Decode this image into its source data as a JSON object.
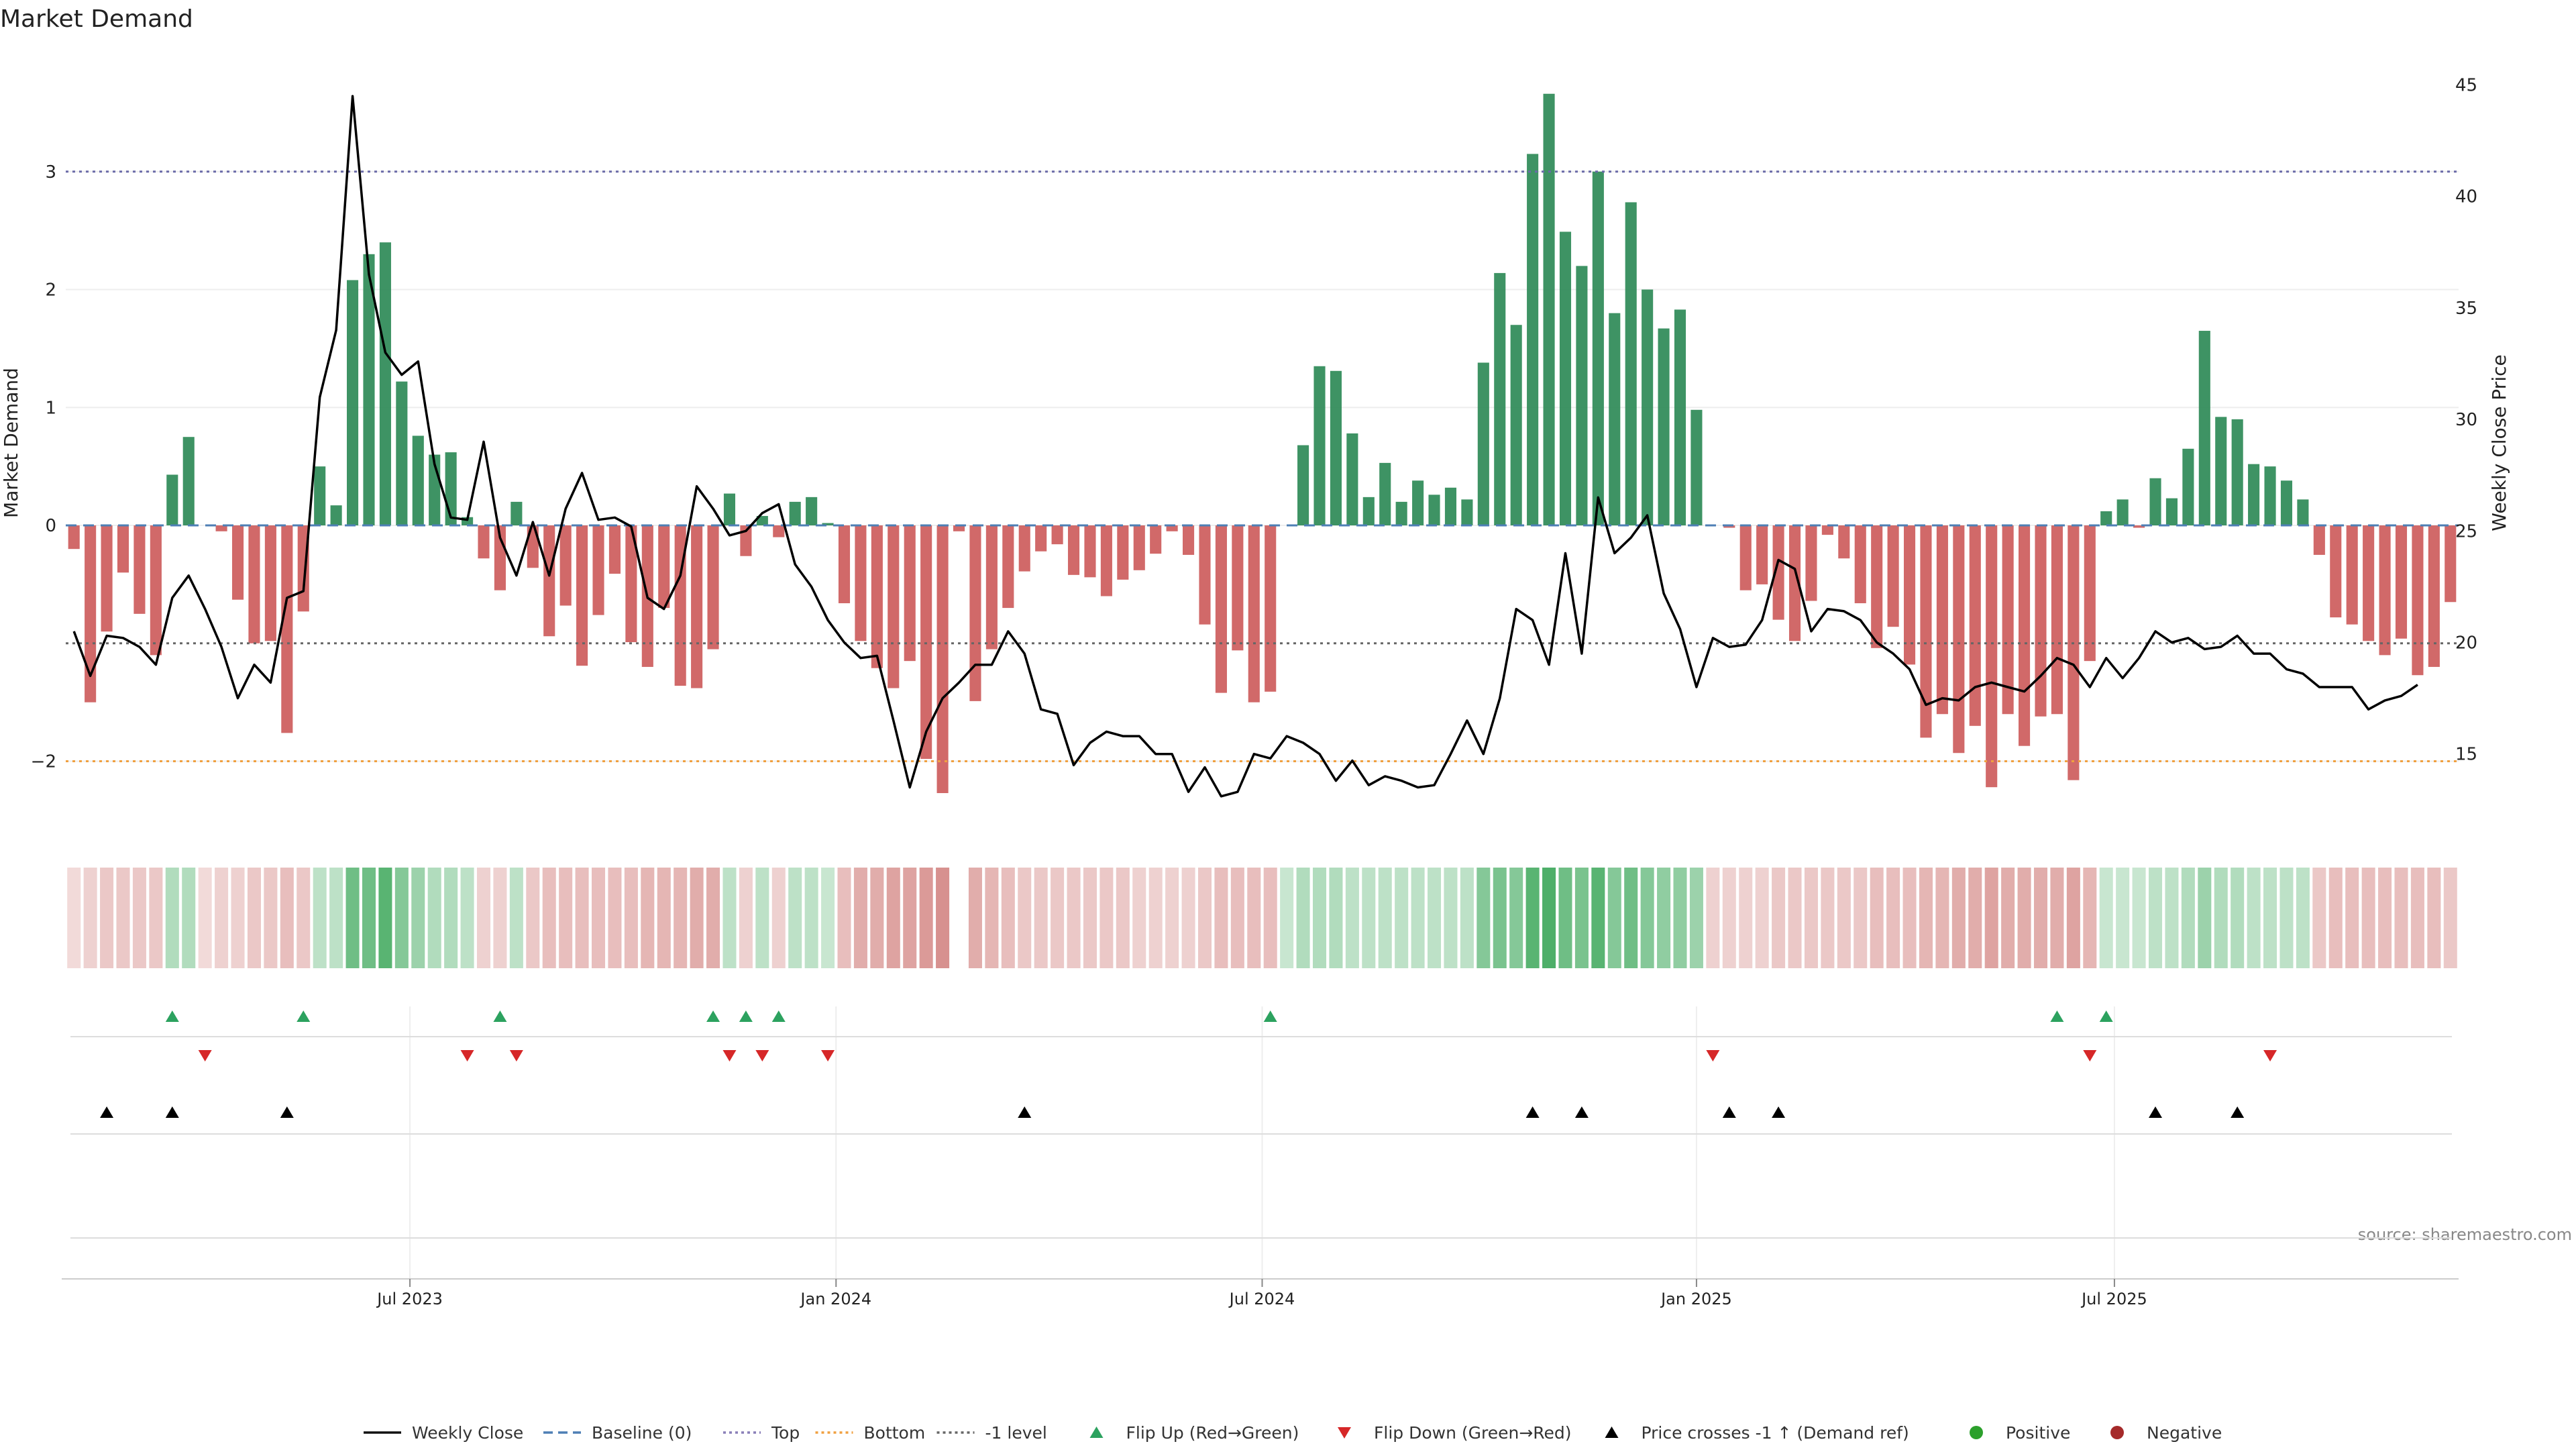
{
  "chart_data": {
    "type": "bar",
    "title": "Market Demand",
    "ylabel": "Market Demand",
    "y2label": "Weekly Close Price",
    "ylim": [
      -2.6,
      4.0
    ],
    "y2lim": [
      11.5,
      46.4
    ],
    "yticks": [
      "3",
      "2",
      "1",
      "0",
      "−2"
    ],
    "yticks_values": [
      3,
      2,
      1,
      0,
      -2
    ],
    "y2ticks": [
      "45",
      "40",
      "35",
      "30",
      "25",
      "20",
      "15"
    ],
    "y2ticks_values": [
      45,
      40,
      35,
      30,
      25,
      20,
      15
    ],
    "xticks": [
      {
        "label": "Jul 2023",
        "index": 21
      },
      {
        "label": "Jan 2024",
        "index": 47
      },
      {
        "label": "Jul 2024",
        "index": 73
      },
      {
        "label": "Jan 2025",
        "index": 99.5
      },
      {
        "label": "Jul 2025",
        "index": 125
      }
    ],
    "levels": {
      "top": 3.0,
      "bottom": -2.0,
      "minus_one": -1.0,
      "baseline": 0
    },
    "demand": [
      -0.2,
      -1.5,
      -0.9,
      -0.4,
      -0.75,
      -1.1,
      0.43,
      0.75,
      0.0,
      -0.05,
      -0.63,
      -1.0,
      -0.98,
      -1.76,
      -0.73,
      0.5,
      0.17,
      2.08,
      2.3,
      2.4,
      1.22,
      0.76,
      0.6,
      0.62,
      0.07,
      -0.28,
      -0.55,
      0.2,
      -0.36,
      -0.94,
      -0.68,
      -1.19,
      -0.76,
      -0.41,
      -0.99,
      -1.2,
      -0.7,
      -1.36,
      -1.38,
      -1.05,
      0.27,
      -0.26,
      0.08,
      -0.1,
      0.2,
      0.24,
      0.02,
      -0.66,
      -0.98,
      -1.21,
      -1.38,
      -1.15,
      -1.98,
      -2.27,
      -0.05,
      -1.49,
      -1.05,
      -0.7,
      -0.39,
      -0.22,
      -0.16,
      -0.42,
      -0.44,
      -0.6,
      -0.46,
      -0.38,
      -0.24,
      -0.05,
      -0.25,
      -0.84,
      -1.42,
      -1.06,
      -1.5,
      -1.41,
      0.0,
      0.68,
      1.35,
      1.31,
      0.78,
      0.24,
      0.53,
      0.2,
      0.38,
      0.26,
      0.32,
      0.22,
      1.38,
      2.14,
      1.7,
      3.15,
      3.66,
      2.49,
      2.2,
      3.0,
      1.8,
      2.74,
      2.0,
      1.67,
      1.83,
      0.98,
      0.0,
      -0.02,
      -0.55,
      -0.5,
      -0.8,
      -0.98,
      -0.64,
      -0.08,
      -0.28,
      -0.66,
      -1.04,
      -0.86,
      -1.18,
      -1.8,
      -1.6,
      -1.93,
      -1.7,
      -2.22,
      -1.6,
      -1.87,
      -1.62,
      -1.6,
      -2.16,
      -1.15,
      0.12,
      0.22,
      -0.02,
      0.4,
      0.23,
      0.65,
      1.65,
      0.92,
      0.9,
      0.52,
      0.5,
      0.38,
      0.22,
      -0.25,
      -0.78,
      -0.84,
      -0.98,
      -1.1,
      -0.96,
      -1.27,
      -1.2,
      -0.65
    ],
    "close": [
      20.5,
      18.5,
      20.3,
      20.2,
      19.8,
      19.0,
      22.0,
      23.0,
      21.5,
      19.8,
      17.5,
      19.0,
      18.2,
      22.0,
      22.3,
      31.0,
      34.0,
      44.5,
      36.5,
      33.0,
      32.0,
      32.6,
      28.0,
      25.6,
      25.5,
      29.0,
      24.7,
      23.0,
      25.4,
      23.0,
      26.0,
      27.6,
      25.5,
      25.6,
      25.2,
      22.0,
      21.5,
      23.0,
      27.0,
      26.0,
      24.8,
      25.0,
      25.8,
      26.2,
      23.5,
      22.5,
      21.0,
      20.0,
      19.3,
      19.4,
      16.5,
      13.5,
      16.0,
      17.5,
      18.2,
      19.0,
      19.0,
      20.5,
      19.5,
      17.0,
      16.8,
      14.5,
      15.5,
      16.0,
      15.8,
      15.8,
      15.0,
      15.0,
      13.3,
      14.4,
      13.1,
      13.3,
      15.0,
      14.8,
      15.8,
      15.5,
      15.0,
      13.8,
      14.7,
      13.6,
      14.0,
      13.8,
      13.5,
      13.6,
      15.0,
      16.5,
      15.0,
      17.5,
      21.5,
      21.0,
      19.0,
      24.0,
      19.5,
      26.5,
      24.0,
      24.7,
      25.7,
      22.2,
      20.6,
      18.0,
      20.2,
      19.8,
      19.9,
      21.0,
      23.7,
      23.3,
      20.5,
      21.5,
      21.4,
      21.0,
      20.0,
      19.5,
      18.8,
      17.2,
      17.5,
      17.4,
      18.0,
      18.2,
      18.0,
      17.8,
      18.5,
      19.3,
      19.0,
      18.0,
      19.3,
      18.4,
      19.3,
      20.5,
      20.0,
      20.2,
      19.7,
      19.8,
      20.3,
      19.5,
      19.5,
      18.8,
      18.6,
      18.0,
      18.0,
      18.0,
      17.0,
      17.4,
      17.6,
      18.1
    ],
    "strip": [
      -0.2,
      -0.25,
      -0.3,
      -0.3,
      -0.3,
      -0.3,
      0.35,
      0.35,
      -0.2,
      -0.25,
      -0.25,
      -0.3,
      -0.3,
      -0.35,
      -0.3,
      0.3,
      0.3,
      0.65,
      0.65,
      0.75,
      0.55,
      0.45,
      0.35,
      0.35,
      0.3,
      -0.25,
      -0.25,
      0.3,
      -0.3,
      -0.35,
      -0.35,
      -0.35,
      -0.35,
      -0.35,
      -0.35,
      -0.4,
      -0.4,
      -0.4,
      -0.45,
      -0.45,
      0.3,
      -0.25,
      0.3,
      -0.25,
      0.3,
      0.3,
      0.25,
      -0.35,
      -0.45,
      -0.45,
      -0.5,
      -0.5,
      -0.55,
      -0.6,
      0,
      -0.45,
      -0.4,
      -0.35,
      -0.3,
      -0.3,
      -0.3,
      -0.3,
      -0.3,
      -0.3,
      -0.3,
      -0.25,
      -0.25,
      -0.25,
      -0.25,
      -0.3,
      -0.35,
      -0.35,
      -0.35,
      -0.35,
      0.25,
      0.35,
      0.35,
      0.35,
      0.3,
      0.3,
      0.3,
      0.3,
      0.3,
      0.3,
      0.3,
      0.3,
      0.55,
      0.6,
      0.55,
      0.75,
      0.8,
      0.65,
      0.6,
      0.75,
      0.55,
      0.65,
      0.55,
      0.5,
      0.5,
      0.45,
      -0.25,
      -0.25,
      -0.25,
      -0.25,
      -0.3,
      -0.3,
      -0.3,
      -0.3,
      -0.3,
      -0.3,
      -0.35,
      -0.35,
      -0.35,
      -0.4,
      -0.4,
      -0.45,
      -0.45,
      -0.5,
      -0.45,
      -0.45,
      -0.45,
      -0.45,
      -0.5,
      -0.4,
      0.25,
      0.25,
      0.25,
      0.3,
      0.3,
      0.35,
      0.45,
      0.35,
      0.35,
      0.3,
      0.3,
      0.3,
      0.3,
      -0.3,
      -0.35,
      -0.35,
      -0.35,
      -0.35,
      -0.35,
      -0.35,
      -0.35,
      -0.3
    ],
    "flip_up_indices": [
      6,
      14,
      26,
      39,
      41,
      43,
      73,
      121,
      124
    ],
    "flip_down_indices": [
      8,
      24,
      27,
      40,
      42,
      46,
      100,
      123,
      134
    ],
    "price_cross_indices": [
      2,
      6,
      13,
      58,
      89,
      92,
      101,
      104,
      127,
      132
    ],
    "legend": [
      {
        "kind": "line",
        "label": "Weekly Close",
        "color": "#111111"
      },
      {
        "kind": "dash",
        "label": "Baseline (0)",
        "color": "#4e7fb5"
      },
      {
        "kind": "dot",
        "label": "Top",
        "color": "#8a7fb8"
      },
      {
        "kind": "dot",
        "label": "Bottom",
        "color": "#f0a040"
      },
      {
        "kind": "dot",
        "label": "-1 level",
        "color": "#666666"
      },
      {
        "kind": "tri-up",
        "label": "Flip Up (Red→Green)",
        "color": "#2ca25f"
      },
      {
        "kind": "tri-down",
        "label": "Flip Down (Green→Red)",
        "color": "#d62728"
      },
      {
        "kind": "tri-up",
        "label": "Price crosses -1 ↑ (Demand ref)",
        "color": "#000000"
      },
      {
        "kind": "circle",
        "label": "Positive",
        "color": "#2ca02c"
      },
      {
        "kind": "circle",
        "label": "Negative",
        "color": "#a52a2a"
      }
    ],
    "source": "source: sharemaestro.com"
  },
  "colors": {
    "positive": "#2e8a57",
    "negative": "#cd5c5c",
    "price_line": "#000000",
    "top_line": "#6a6aa8",
    "bottom_line": "#f0a040",
    "minus_one_line": "#666666",
    "baseline": "#4e7fb5",
    "strip_green": "#2ca04c",
    "strip_red": "#c0504d"
  }
}
